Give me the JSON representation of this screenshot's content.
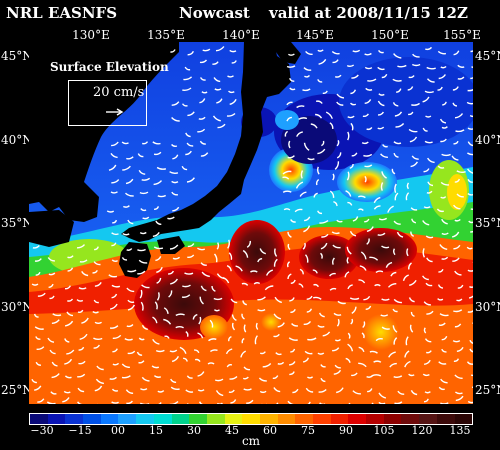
{
  "header": {
    "model": "NRL EASNFS",
    "product": "Nowcast",
    "valid": "valid at 2008/11/15 12Z"
  },
  "lon_labels": [
    "130°E",
    "135°E",
    "140°E",
    "145°E",
    "150°E",
    "155°E"
  ],
  "lat_labels_left": [
    "45°N",
    "40°N",
    "35°N",
    "30°N",
    "25°N"
  ],
  "lat_labels_right": [
    "45°N",
    "40°N",
    "35°N",
    "30°N",
    "25°N"
  ],
  "inset": {
    "title": "Surface Elevation",
    "scale_label": "20 cm/s"
  },
  "colorbar": {
    "tick_labels": [
      "−30",
      "−15",
      "00",
      "15",
      "30",
      "45",
      "60",
      "75",
      "90",
      "105",
      "120",
      "135"
    ],
    "unit": "cm",
    "colors": [
      "#0a0a78",
      "#0a14b4",
      "#0a32d2",
      "#0050e6",
      "#0a78ff",
      "#1ea0ff",
      "#14c8f0",
      "#00dcd2",
      "#00d28c",
      "#32d232",
      "#96e61e",
      "#e6f014",
      "#ffdc00",
      "#ffb400",
      "#ff8c00",
      "#ff6400",
      "#ff4000",
      "#f02000",
      "#dc0000",
      "#b40000",
      "#8c0000",
      "#6e0a0a",
      "#551414",
      "#3c0a0a",
      "#2a0505"
    ]
  },
  "map_colors": {
    "cold_deep": "#0a14b4",
    "cold": "#1e64ff",
    "mid_cool": "#14c8f0",
    "mid": "#32d232",
    "warm": "#ff6400",
    "hot": "#dc0000",
    "eddy": "#3c0a0a",
    "land": "#000000",
    "vectors": "#ffffff"
  }
}
